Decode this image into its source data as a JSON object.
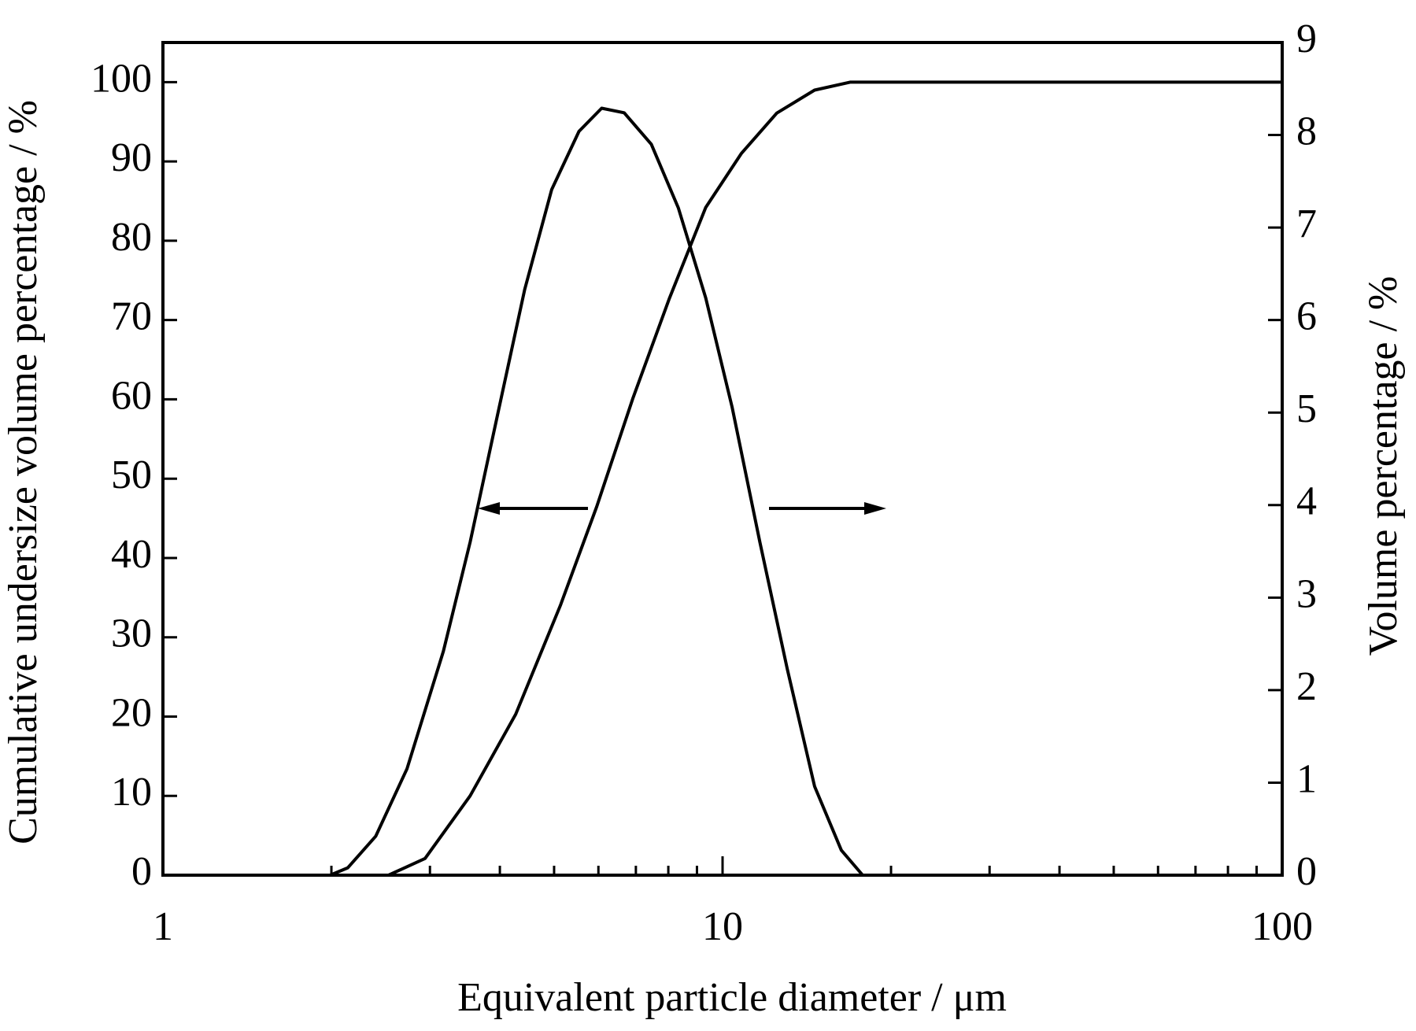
{
  "chart_data": {
    "type": "line",
    "x_label": "Equivalent particle diameter / μm",
    "y_label": "Cumulative undersize volume percentage / %",
    "y2_label": "Volume percentage / %",
    "log_x": true,
    "xlim": [
      1,
      100
    ],
    "xticks": [
      1,
      10,
      100
    ],
    "ylim": [
      0,
      105
    ],
    "yticks": [
      0,
      10,
      20,
      30,
      40,
      50,
      60,
      70,
      80,
      90,
      100
    ],
    "y2lim": [
      0,
      9
    ],
    "y2ticks": [
      0,
      1,
      2,
      3,
      4,
      5,
      6,
      7,
      8,
      9
    ],
    "series": [
      {
        "name": "Cumulative undersize volume percentage",
        "color": "#000000",
        "x": [
          1,
          2.53,
          2.94,
          3.54,
          4.27,
          5.13,
          5.96,
          6.92,
          8.03,
          9.33,
          10.8,
          12.5,
          14.6,
          16.9,
          100
        ],
        "values": [
          0,
          0,
          2.1,
          10,
          20.3,
          34,
          46.5,
          60.2,
          72.7,
          84.2,
          91,
          96.1,
          99,
          100,
          100
        ]
      },
      {
        "name": "Volume percentage",
        "color": "#000000",
        "axis": "y2",
        "x": [
          1,
          1.99,
          2.14,
          2.4,
          2.73,
          3.17,
          3.54,
          3.96,
          4.43,
          4.95,
          5.54,
          6.08,
          6.67,
          7.46,
          8.34,
          9.33,
          10.4,
          11.66,
          13.05,
          14.6,
          16.3,
          17.8,
          100
        ],
        "values": [
          0,
          0,
          0.08,
          0.42,
          1.15,
          2.42,
          3.6,
          4.97,
          6.33,
          7.41,
          8.04,
          8.29,
          8.24,
          7.9,
          7.21,
          6.24,
          5.06,
          3.6,
          2.23,
          0.96,
          0.27,
          0,
          0
        ]
      }
    ]
  }
}
